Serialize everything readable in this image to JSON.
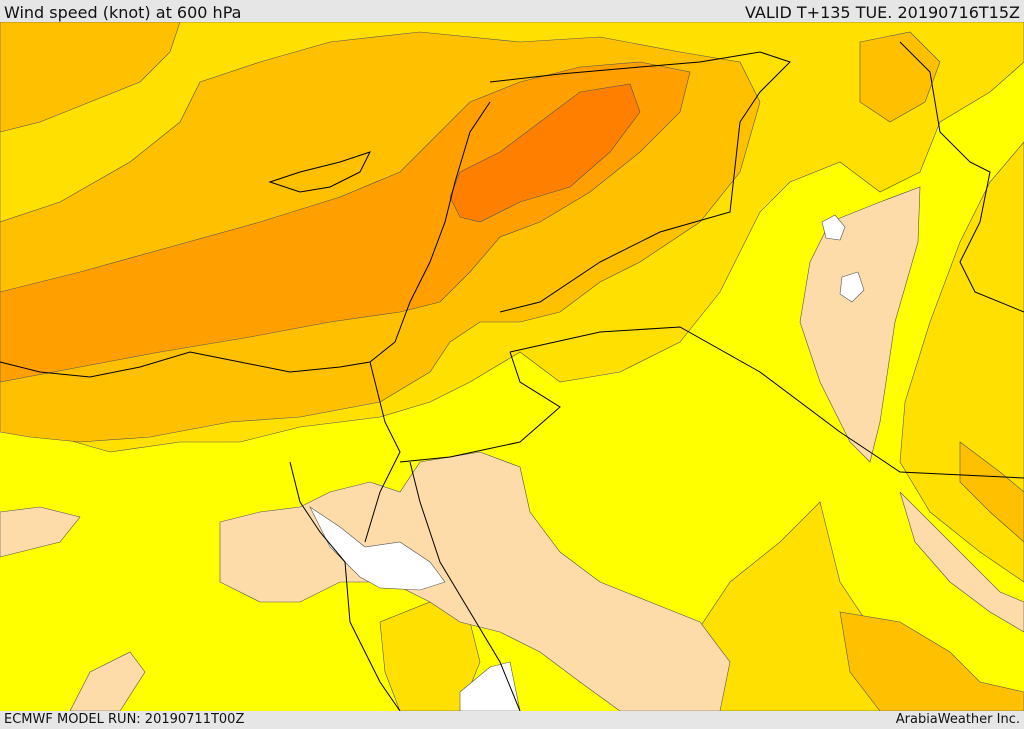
{
  "header": {
    "title": "Wind speed (knot) at 600 hPa",
    "valid": "VALID T+135 TUE. 20190716T15Z"
  },
  "footer": {
    "model_run": "ECMWF MODEL RUN: 20190711T00Z",
    "credit": "ArabiaWeather Inc."
  },
  "colors": {
    "band_lowest": "#ffffff",
    "band_low": "#fddcaa",
    "band_mid_low": "#ffff00",
    "band_mid": "#ffe000",
    "band_mid_high": "#ffc000",
    "band_high": "#ffa000",
    "band_highest": "#ff8000",
    "border_line": "#000000"
  }
}
